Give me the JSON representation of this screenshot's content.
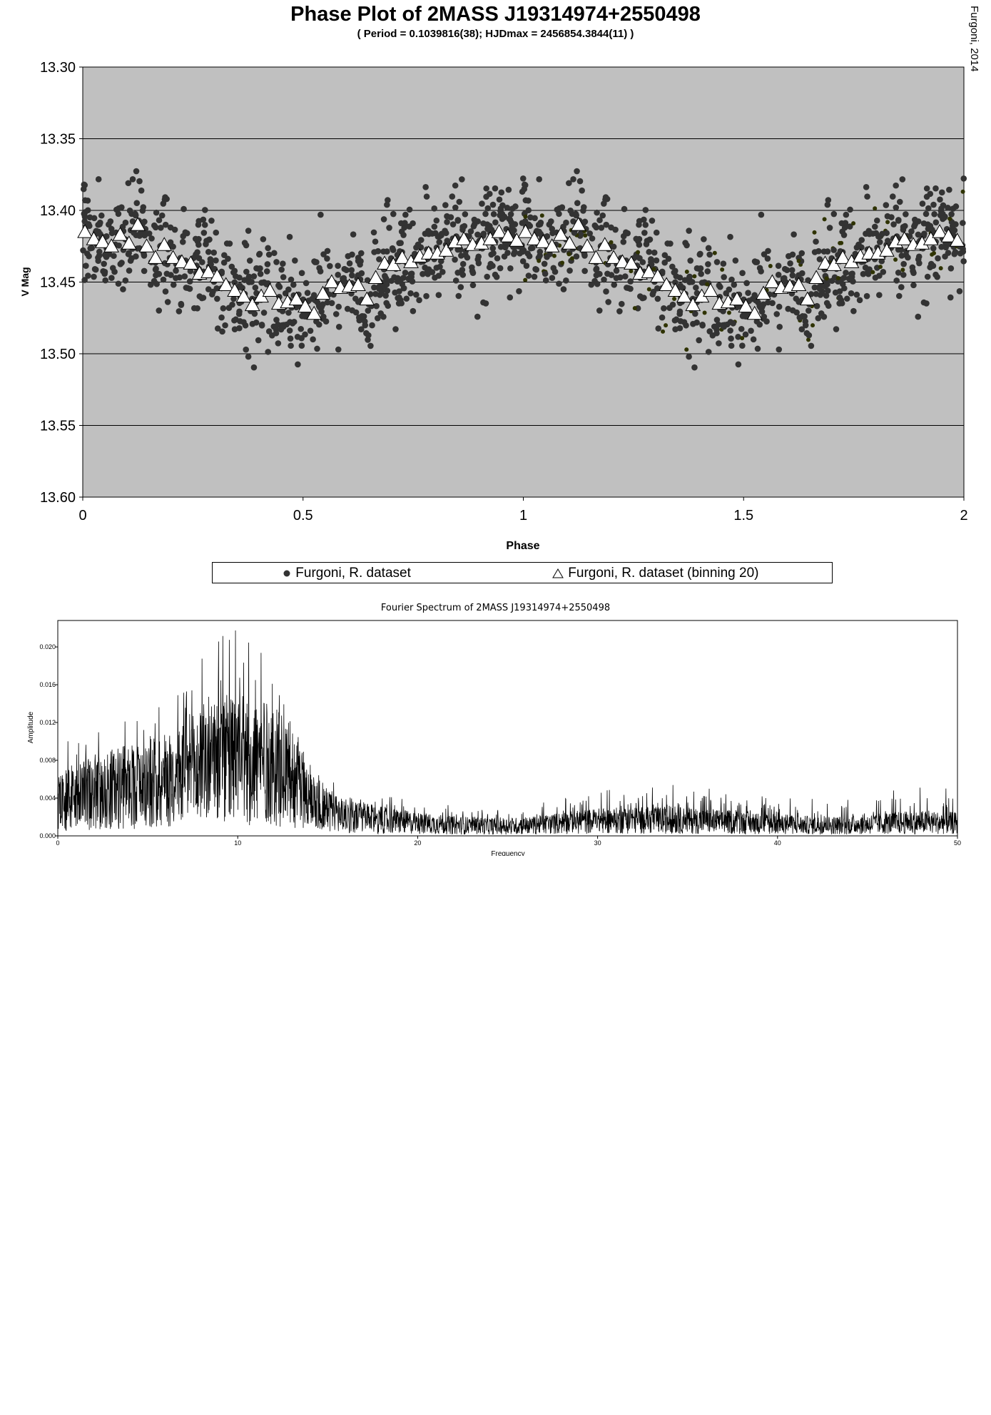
{
  "phase_plot": {
    "title": "Phase Plot of 2MASS J19314974+2550498",
    "subtitle": "( Period = 0.1039816(38); HJDmax = 2456854.3844(11) )",
    "credit": "Furgoni, 2014",
    "legend": {
      "raw_label": "Furgoni, R. dataset",
      "binned_label": "Furgoni, R. dataset (binning 20)"
    },
    "colors": {
      "plot_bg": "#c0c0c0",
      "points": "#333333",
      "binned_fill": "#ffffff"
    }
  },
  "fourier": {
    "title": "Fourier Spectrum of 2MASS J19314974+2550498"
  },
  "chart_data": [
    {
      "type": "scatter",
      "title": "Phase Plot of 2MASS J19314974+2550498",
      "subtitle": "( Period = 0.1039816(38); HJDmax = 2456854.3844(11) )",
      "xlabel": "Phase",
      "ylabel": "V Mag",
      "xlim": [
        0,
        2
      ],
      "ylim": [
        13.6,
        13.3
      ],
      "y_inverted": true,
      "xticks": [
        "0",
        "0.5",
        "1",
        "1.5",
        "2"
      ],
      "yticks": [
        "13.30",
        "13.35",
        "13.40",
        "13.45",
        "13.50",
        "13.55",
        "13.60"
      ],
      "grid": "horizontal",
      "legend_position": "bottom",
      "series": [
        {
          "name": "Furgoni, R. dataset (binning 20)",
          "marker": "triangle",
          "x": [
            0.005,
            0.025,
            0.045,
            0.065,
            0.085,
            0.105,
            0.125,
            0.145,
            0.165,
            0.185,
            0.205,
            0.225,
            0.245,
            0.265,
            0.285,
            0.305,
            0.325,
            0.345,
            0.365,
            0.385,
            0.405,
            0.425,
            0.445,
            0.465,
            0.485,
            0.505,
            0.525,
            0.545,
            0.565,
            0.585,
            0.605,
            0.625,
            0.645,
            0.665,
            0.685,
            0.705,
            0.725,
            0.745,
            0.765,
            0.785,
            0.805,
            0.825,
            0.845,
            0.865,
            0.885,
            0.905,
            0.925,
            0.945,
            0.965,
            0.985
          ],
          "y": [
            13.415,
            13.42,
            13.422,
            13.425,
            13.417,
            13.423,
            13.41,
            13.425,
            13.433,
            13.424,
            13.433,
            13.436,
            13.437,
            13.444,
            13.443,
            13.446,
            13.452,
            13.456,
            13.46,
            13.466,
            13.46,
            13.456,
            13.465,
            13.464,
            13.462,
            13.467,
            13.472,
            13.458,
            13.45,
            13.454,
            13.453,
            13.452,
            13.462,
            13.447,
            13.437,
            13.438,
            13.433,
            13.436,
            13.432,
            13.43,
            13.43,
            13.428,
            13.422,
            13.42,
            13.424,
            13.423,
            13.42,
            13.415,
            13.418,
            13.421
          ]
        },
        {
          "name": "Furgoni, R. dataset",
          "marker": "circle",
          "points": "approximately 800 observations (phase 0–1, repeated over 1–2), V Mag mostly between 13.33 and 13.55"
        }
      ]
    },
    {
      "type": "line",
      "title": "Fourier Spectrum of 2MASS J19314974+2550498",
      "xlabel": "Frequency",
      "ylabel": "Amplitude",
      "xlim": [
        0,
        50
      ],
      "ylim": [
        0,
        0.0228
      ],
      "xticks": [
        "0",
        "10",
        "20",
        "30",
        "40",
        "50"
      ],
      "yticks": [
        "0.000",
        "0.004",
        "0.008",
        "0.012",
        "0.016",
        "0.020"
      ],
      "envelope": {
        "x": [
          0,
          2,
          4,
          6,
          7,
          8,
          9,
          10,
          11,
          12,
          13,
          14,
          15,
          16,
          18,
          20,
          22,
          24,
          26,
          28,
          30,
          32,
          34,
          36,
          38,
          40,
          42,
          44,
          46,
          48,
          50
        ],
        "max_amplitude": [
          0.011,
          0.011,
          0.013,
          0.016,
          0.019,
          0.0215,
          0.0225,
          0.022,
          0.021,
          0.018,
          0.013,
          0.008,
          0.0065,
          0.005,
          0.0043,
          0.0038,
          0.0032,
          0.003,
          0.0032,
          0.0045,
          0.0048,
          0.0052,
          0.0054,
          0.0054,
          0.0048,
          0.0042,
          0.0039,
          0.004,
          0.0049,
          0.0052,
          0.005
        ],
        "typical_amplitude": [
          0.005,
          0.006,
          0.007,
          0.008,
          0.0088,
          0.0095,
          0.0102,
          0.0106,
          0.0105,
          0.0098,
          0.0086,
          0.0055,
          0.0037,
          0.0028,
          0.0022,
          0.0018,
          0.0015,
          0.0014,
          0.0014,
          0.0018,
          0.0021,
          0.0022,
          0.0022,
          0.0021,
          0.0019,
          0.0016,
          0.0015,
          0.0015,
          0.0018,
          0.0019,
          0.0018
        ]
      }
    }
  ]
}
